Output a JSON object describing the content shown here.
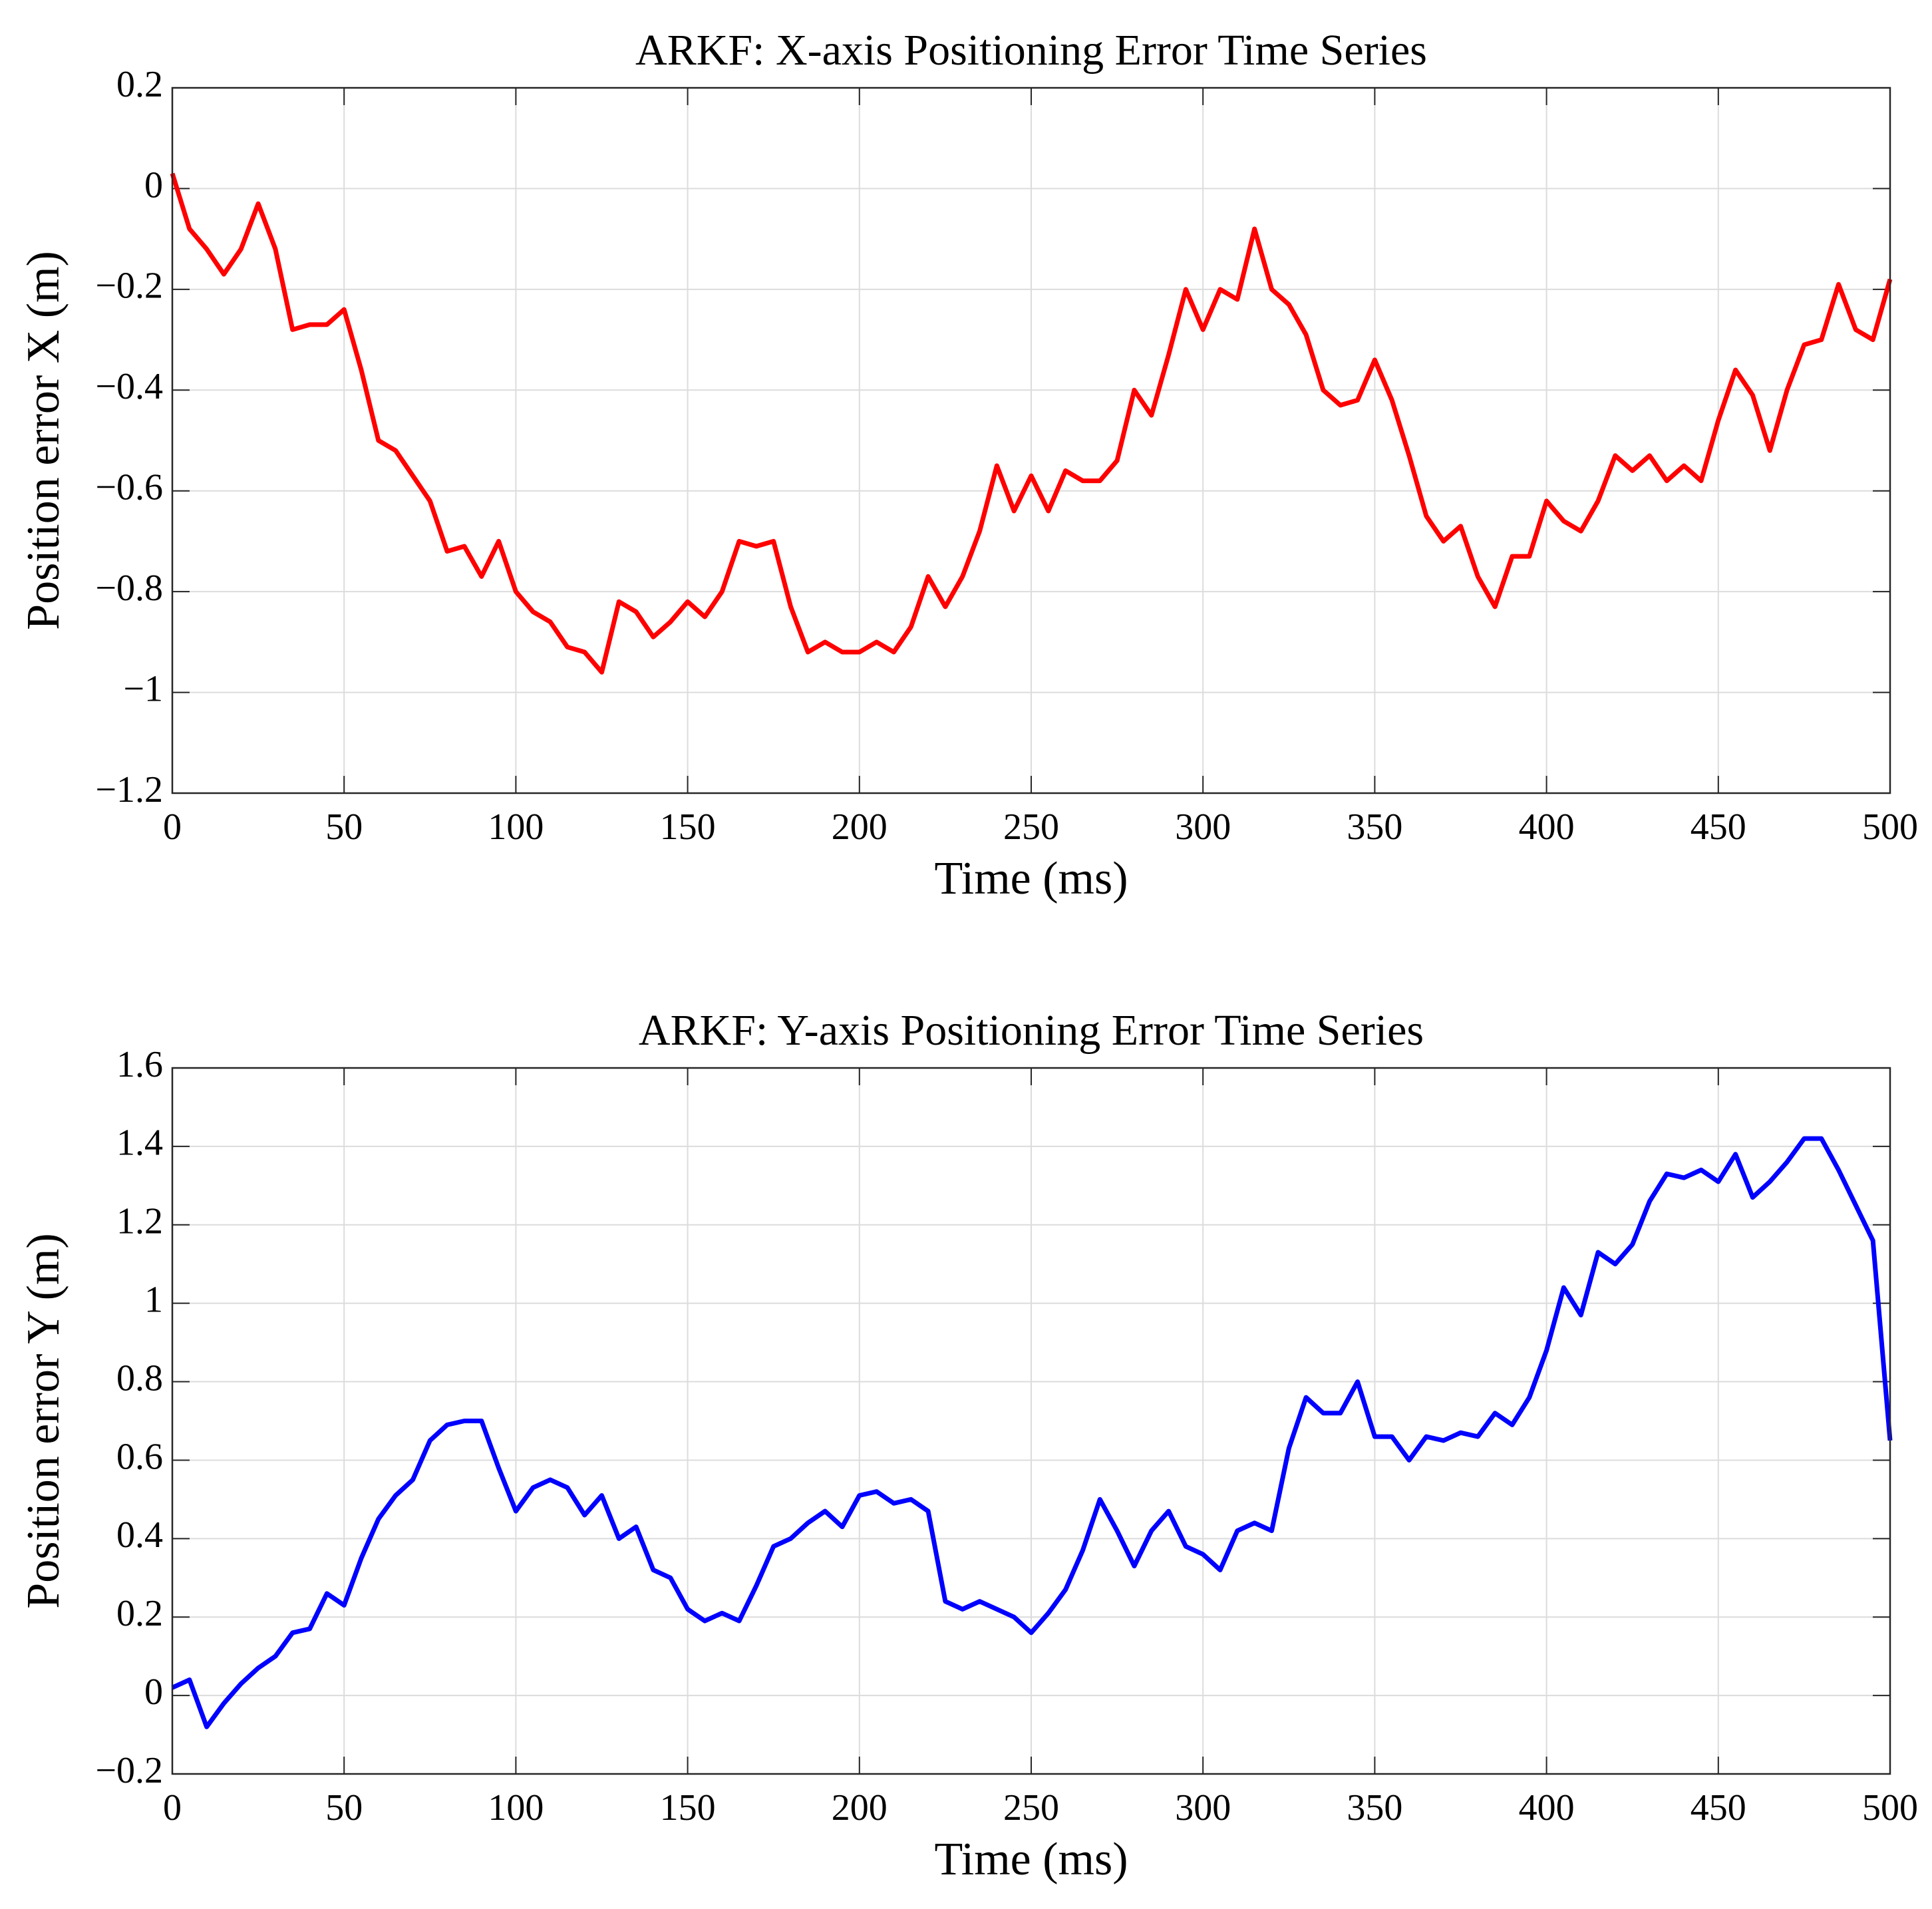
{
  "chart_data": [
    {
      "type": "line",
      "title": "ARKF: X-axis Positioning Error Time Series",
      "xlabel": "Time (ms)",
      "ylabel": "Position error X (m)",
      "color": "#ff0000",
      "grid": true,
      "xlim": [
        0,
        500
      ],
      "xticks": [
        0,
        50,
        100,
        150,
        200,
        250,
        300,
        350,
        400,
        450,
        500
      ],
      "ylim": [
        -1.2,
        0.2
      ],
      "yticks": [
        {
          "value": -1.2,
          "label": "−1.2"
        },
        {
          "value": -1,
          "label": "−1"
        },
        {
          "value": -0.8,
          "label": "−0.8"
        },
        {
          "value": -0.6,
          "label": "−0.6"
        },
        {
          "value": -0.4,
          "label": "−0.4"
        },
        {
          "value": -0.2,
          "label": "−0.2"
        },
        0,
        0.2
      ],
      "x": [
        0,
        5,
        10,
        15,
        20,
        25,
        30,
        35,
        40,
        45,
        50,
        55,
        60,
        65,
        70,
        75,
        80,
        85,
        90,
        95,
        100,
        105,
        110,
        115,
        120,
        125,
        130,
        135,
        140,
        145,
        150,
        155,
        160,
        165,
        170,
        175,
        180,
        185,
        190,
        195,
        200,
        205,
        210,
        215,
        220,
        225,
        230,
        235,
        240,
        245,
        250,
        255,
        260,
        265,
        270,
        275,
        280,
        285,
        290,
        295,
        300,
        305,
        310,
        315,
        320,
        325,
        330,
        335,
        340,
        345,
        350,
        355,
        360,
        365,
        370,
        375,
        380,
        385,
        390,
        395,
        400,
        405,
        410,
        415,
        420,
        425,
        430,
        435,
        440,
        445,
        450,
        455,
        460,
        465,
        470,
        475,
        480,
        485,
        490,
        495,
        500
      ],
      "values": [
        0.03,
        -0.08,
        -0.12,
        -0.17,
        -0.12,
        -0.03,
        -0.12,
        -0.28,
        -0.27,
        -0.27,
        -0.24,
        -0.36,
        -0.5,
        -0.52,
        -0.57,
        -0.62,
        -0.72,
        -0.71,
        -0.77,
        -0.7,
        -0.8,
        -0.84,
        -0.86,
        -0.91,
        -0.92,
        -0.96,
        -0.82,
        -0.84,
        -0.89,
        -0.86,
        -0.82,
        -0.85,
        -0.8,
        -0.7,
        -0.71,
        -0.7,
        -0.83,
        -0.92,
        -0.9,
        -0.92,
        -0.92,
        -0.9,
        -0.92,
        -0.87,
        -0.77,
        -0.83,
        -0.77,
        -0.68,
        -0.55,
        -0.64,
        -0.57,
        -0.64,
        -0.56,
        -0.58,
        -0.58,
        -0.54,
        -0.4,
        -0.45,
        -0.33,
        -0.2,
        -0.28,
        -0.2,
        -0.22,
        -0.08,
        -0.2,
        -0.23,
        -0.29,
        -0.4,
        -0.43,
        -0.42,
        -0.34,
        -0.42,
        -0.53,
        -0.65,
        -0.7,
        -0.67,
        -0.77,
        -0.83,
        -0.73,
        -0.73,
        -0.62,
        -0.66,
        -0.68,
        -0.62,
        -0.53,
        -0.56,
        -0.53,
        -0.58,
        -0.55,
        -0.58,
        -0.46,
        -0.36,
        -0.41,
        -0.52,
        -0.4,
        -0.31,
        -0.3,
        -0.19,
        -0.28,
        -0.3,
        -0.18
      ]
    },
    {
      "type": "line",
      "title": "ARKF: Y-axis Positioning Error Time Series",
      "xlabel": "Time (ms)",
      "ylabel": "Position error Y (m)",
      "color": "#0000ff",
      "grid": true,
      "xlim": [
        0,
        500
      ],
      "xticks": [
        0,
        50,
        100,
        150,
        200,
        250,
        300,
        350,
        400,
        450,
        500
      ],
      "ylim": [
        -0.2,
        1.6
      ],
      "yticks": [
        {
          "value": -0.2,
          "label": "−0.2"
        },
        0,
        0.2,
        0.4,
        0.6,
        0.8,
        1,
        1.2,
        1.4,
        1.6
      ],
      "x": [
        0,
        5,
        10,
        15,
        20,
        25,
        30,
        35,
        40,
        45,
        50,
        55,
        60,
        65,
        70,
        75,
        80,
        85,
        90,
        95,
        100,
        105,
        110,
        115,
        120,
        125,
        130,
        135,
        140,
        145,
        150,
        155,
        160,
        165,
        170,
        175,
        180,
        185,
        190,
        195,
        200,
        205,
        210,
        215,
        220,
        225,
        230,
        235,
        240,
        245,
        250,
        255,
        260,
        265,
        270,
        275,
        280,
        285,
        290,
        295,
        300,
        305,
        310,
        315,
        320,
        325,
        330,
        335,
        340,
        345,
        350,
        355,
        360,
        365,
        370,
        375,
        380,
        385,
        390,
        395,
        400,
        405,
        410,
        415,
        420,
        425,
        430,
        435,
        440,
        445,
        450,
        455,
        460,
        465,
        470,
        475,
        480,
        485,
        490,
        495,
        500
      ],
      "values": [
        0.02,
        0.04,
        -0.08,
        -0.02,
        0.03,
        0.07,
        0.1,
        0.16,
        0.17,
        0.26,
        0.23,
        0.35,
        0.45,
        0.51,
        0.55,
        0.65,
        0.69,
        0.7,
        0.7,
        0.58,
        0.47,
        0.53,
        0.55,
        0.53,
        0.46,
        0.51,
        0.4,
        0.43,
        0.32,
        0.3,
        0.22,
        0.19,
        0.21,
        0.19,
        0.28,
        0.38,
        0.4,
        0.44,
        0.47,
        0.43,
        0.51,
        0.52,
        0.49,
        0.5,
        0.47,
        0.24,
        0.22,
        0.24,
        0.22,
        0.2,
        0.16,
        0.21,
        0.27,
        0.37,
        0.5,
        0.42,
        0.33,
        0.42,
        0.47,
        0.38,
        0.36,
        0.32,
        0.42,
        0.44,
        0.42,
        0.63,
        0.76,
        0.72,
        0.72,
        0.8,
        0.66,
        0.66,
        0.6,
        0.66,
        0.65,
        0.67,
        0.66,
        0.72,
        0.69,
        0.76,
        0.88,
        1.04,
        0.97,
        1.13,
        1.1,
        1.15,
        1.26,
        1.33,
        1.32,
        1.34,
        1.31,
        1.38,
        1.27,
        1.31,
        1.36,
        1.42,
        1.42,
        1.34,
        1.25,
        1.16,
        0.65
      ]
    }
  ]
}
